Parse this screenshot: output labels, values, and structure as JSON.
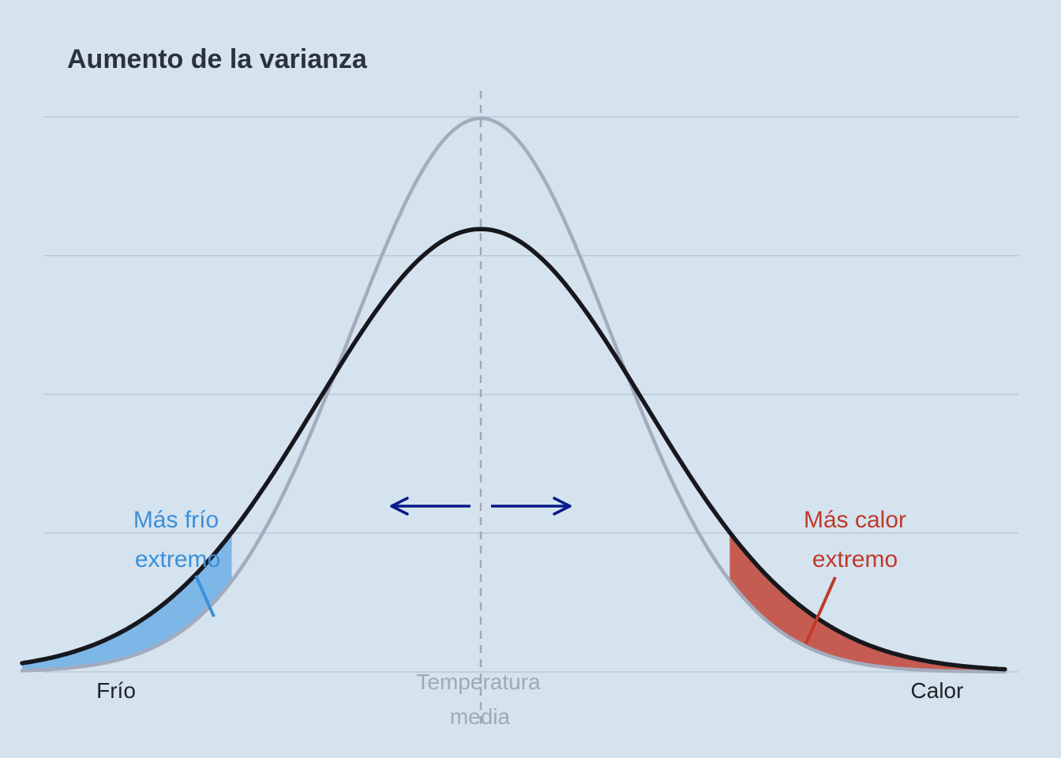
{
  "chart_data": {
    "type": "line",
    "title": "Aumento de la varianza",
    "xlabel": "",
    "ylabel": "",
    "grid": "horizontal",
    "x_tick_labels": {
      "left": "Frío",
      "right": "Calor"
    },
    "mean_label": [
      "Temperatura",
      "media"
    ],
    "series": [
      {
        "mean": 0,
        "sd": 1.0,
        "color": "#a3acbc",
        "style": "solid"
      },
      {
        "mean": 0,
        "sd": 1.25,
        "color": "#16181d",
        "style": "solid"
      }
    ],
    "xlim": [
      -3.5,
      4.0
    ],
    "ylim": [
      0,
      0.4
    ],
    "shaded_tails": {
      "cold": {
        "x_max": -1.9,
        "color": "#7db7e8",
        "label": [
          "Más frío",
          "extremo"
        ],
        "label_color": "#3b8fd9"
      },
      "hot": {
        "x_min": 1.9,
        "color": "#c55c52",
        "label": [
          "Más calor",
          "extremo"
        ],
        "label_color": "#c0392b"
      }
    },
    "arrows": {
      "color": "#0a1a8a",
      "direction": "outward"
    }
  }
}
